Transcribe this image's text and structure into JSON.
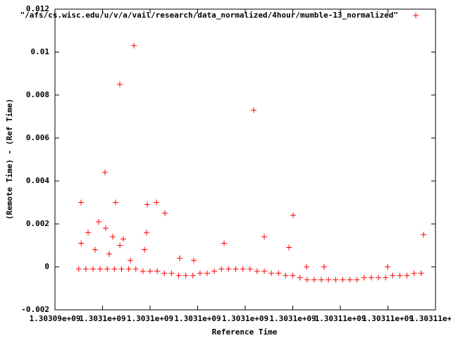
{
  "chart_data": {
    "type": "scatter",
    "xlabel": "Reference Time",
    "ylabel": "(Remote Time) - (Ref Time)",
    "xlim": [
      1303094000,
      1303110000
    ],
    "ylim": [
      -0.002,
      0.012
    ],
    "xticks": [
      {
        "value": 1303094000,
        "label": "1.30309e+09"
      },
      {
        "value": 1303096000,
        "label": "1.3031e+09"
      },
      {
        "value": 1303098000,
        "label": "1.3031e+09"
      },
      {
        "value": 1303100000,
        "label": "1.3031e+09"
      },
      {
        "value": 1303102000,
        "label": "1.3031e+09"
      },
      {
        "value": 1303104000,
        "label": "1.3031e+09"
      },
      {
        "value": 1303106000,
        "label": "1.30311e+09"
      },
      {
        "value": 1303108000,
        "label": "1.30311e+09"
      },
      {
        "value": 1303110000,
        "label": "1.30311e+09"
      }
    ],
    "yticks": [
      -0.002,
      0,
      0.002,
      0.004,
      0.006,
      0.008,
      0.01,
      0.012
    ],
    "legend": "top-right",
    "x": [
      1303095096,
      1303096104,
      1303096726,
      1303097319,
      1303102356,
      1303096548,
      1303097882,
      1303098267,
      1303098622,
      1303104015,
      1303109496,
      1303101111,
      1303102800,
      1303103837,
      1303095100,
      1303095393,
      1303095837,
      1303096133,
      1303096430,
      1303096874,
      1303097852,
      1303097763,
      1303095689,
      1303096282,
      1303096730,
      1303097170,
      1303099245,
      1303099837,
      1303104578,
      1303105319,
      1303107985,
      1303095000,
      1303095300,
      1303095600,
      1303095900,
      1303096200,
      1303096500,
      1303096800,
      1303097100,
      1303097400,
      1303097700,
      1303098000,
      1303098300,
      1303098600,
      1303098900,
      1303099200,
      1303099500,
      1303099800,
      1303100100,
      1303100400,
      1303100700,
      1303101000,
      1303101300,
      1303101600,
      1303101900,
      1303102200,
      1303102500,
      1303102800,
      1303103100,
      1303103400,
      1303103700,
      1303104000,
      1303104300,
      1303104600,
      1303104900,
      1303105200,
      1303105500,
      1303105800,
      1303106100,
      1303106400,
      1303106700,
      1303107000,
      1303107300,
      1303107600,
      1303107900,
      1303108200,
      1303108500,
      1303108800,
      1303109100,
      1303109400
    ],
    "series": [
      {
        "name": "\"/afs/cs.wisc.edu/u/v/a/vail/research/data_normalized/4hour/mumble-13_normalized\"",
        "color": "#ff0000",
        "values": [
          0.003,
          0.0044,
          0.0085,
          0.0103,
          0.0073,
          0.003,
          0.0029,
          0.003,
          0.0025,
          0.0024,
          0.0015,
          0.0011,
          0.0014,
          0.0009,
          0.0011,
          0.0016,
          0.0021,
          0.0018,
          0.0014,
          0.0013,
          0.0016,
          0.0008,
          0.0008,
          0.0006,
          0.001,
          0.0003,
          0.0004,
          0.0003,
          0,
          0,
          0,
          -0.0001,
          -0.0001,
          -0.0001,
          -0.0001,
          -0.0001,
          -0.0001,
          -0.0001,
          -0.0001,
          -0.0001,
          -0.0002,
          -0.0002,
          -0.0002,
          -0.0003,
          -0.0003,
          -0.0004,
          -0.0004,
          -0.0004,
          -0.0003,
          -0.0003,
          -0.0002,
          -0.0001,
          -0.0001,
          -0.0001,
          -0.0001,
          -0.0001,
          -0.0002,
          -0.0002,
          -0.0003,
          -0.0003,
          -0.0004,
          -0.0004,
          -0.0005,
          -0.0006,
          -0.0006,
          -0.0006,
          -0.0006,
          -0.0006,
          -0.0006,
          -0.0006,
          -0.0006,
          -0.0005,
          -0.0005,
          -0.0005,
          -0.0005,
          -0.0004,
          -0.0004,
          -0.0004,
          -0.0003,
          -0.0003
        ]
      }
    ]
  }
}
